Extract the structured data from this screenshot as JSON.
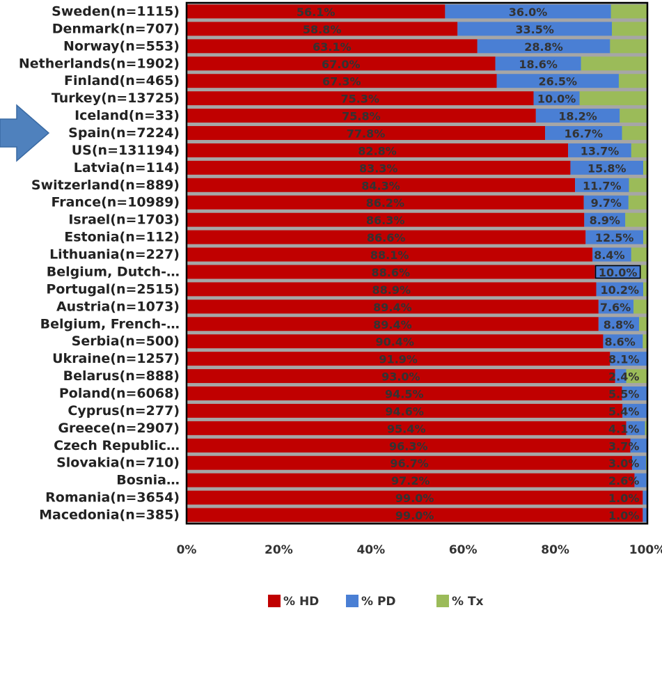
{
  "chart_data": {
    "type": "bar",
    "orientation": "horizontal",
    "stacked": true,
    "percent_stacked": true,
    "categories": [
      "Sweden(n=1115)",
      "Denmark(n=707)",
      "Norway(n=553)",
      "Netherlands(n=1902)",
      "Finland(n=465)",
      "Turkey(n=13725)",
      "Iceland(n=33)",
      "Spain(n=7224)",
      "US(n=131194)",
      "Latvia(n=114)",
      "Switzerland(n=889)",
      "France(n=10989)",
      "Israel(n=1703)",
      "Estonia(n=112)",
      "Lithuania(n=227)",
      "Belgium, Dutch-…",
      "Portugal(n=2515)",
      "Austria(n=1073)",
      "Belgium, French-…",
      "Serbia(n=500)",
      "Ukraine(n=1257)",
      "Belarus(n=888)",
      "Poland(n=6068)",
      "Cyprus(n=277)",
      "Greece(n=2907)",
      "Czech Republic…",
      "Slovakia(n=710)",
      "Bosnia…",
      "Romania(n=3654)",
      "Macedonia(n=385)"
    ],
    "series": [
      {
        "name": "% HD",
        "color": "#c00000",
        "values": [
          56.1,
          58.8,
          63.1,
          67.0,
          67.3,
          75.3,
          75.8,
          77.8,
          82.8,
          83.3,
          84.3,
          86.2,
          86.3,
          86.6,
          88.1,
          88.6,
          88.9,
          89.4,
          89.4,
          90.4,
          91.9,
          93.0,
          94.5,
          94.6,
          95.4,
          96.3,
          96.7,
          97.2,
          99.0,
          99.0
        ],
        "labels": [
          "56.1%",
          "58.8%",
          "63.1%",
          "67.0%",
          "67.3%",
          "75.3%",
          "75.8%",
          "77.8%",
          "82.8%",
          "83.3%",
          "84.3%",
          "86.2%",
          "86.3%",
          "86.6%",
          "88.1%",
          "88.6%",
          "88.9%",
          "89.4%",
          "89.4%",
          "90.4%",
          "91.9%",
          "93.0%",
          "94.5%",
          "94.6%",
          "95.4%",
          "96.3%",
          "96.7%",
          "97.2%",
          "99.0%",
          "99.0%"
        ]
      },
      {
        "name": "% PD",
        "color": "#4a7fd4",
        "values": [
          36.0,
          33.5,
          28.8,
          18.6,
          26.5,
          10.0,
          18.2,
          16.7,
          13.7,
          15.8,
          11.7,
          9.7,
          8.9,
          12.5,
          8.4,
          10.0,
          10.2,
          7.6,
          8.8,
          8.6,
          8.1,
          2.4,
          5.5,
          5.4,
          4.1,
          3.7,
          3.0,
          2.6,
          1.0,
          1.0
        ],
        "labels": [
          "36.0%",
          "33.5%",
          "28.8%",
          "18.6%",
          "26.5%",
          "10.0%",
          "18.2%",
          "16.7%",
          "13.7%",
          "15.8%",
          "11.7%",
          "9.7%",
          "8.9%",
          "12.5%",
          "8.4%",
          "10.0%",
          "10.2%",
          "7.6%",
          "8.8%",
          "8.6%",
          "8.1%",
          "2.4%",
          "5.5%",
          "5.4%",
          "4.1%",
          "3.7%",
          "3.0%",
          "2.6%",
          "1.0%",
          "1.0%"
        ]
      },
      {
        "name": "% Tx",
        "color": "#9bbb59",
        "values": [
          7.9,
          7.7,
          8.1,
          14.4,
          6.2,
          14.7,
          6.0,
          5.5,
          3.5,
          0.9,
          4.0,
          4.1,
          4.8,
          0.9,
          3.5,
          1.4,
          0.9,
          3.0,
          1.8,
          1.0,
          0.0,
          4.6,
          0.0,
          0.0,
          0.5,
          0.0,
          0.3,
          0.2,
          0.0,
          0.0
        ]
      }
    ],
    "x_ticks": [
      "0%",
      "20%",
      "40%",
      "60%",
      "80%",
      "100%"
    ],
    "xlim": [
      0,
      100
    ],
    "grid": false,
    "legend_position": "bottom",
    "highlighted_category": "Spain(n=7224)",
    "highlight_marker": "arrow-right-icon",
    "boxed_label": "10.0%"
  }
}
